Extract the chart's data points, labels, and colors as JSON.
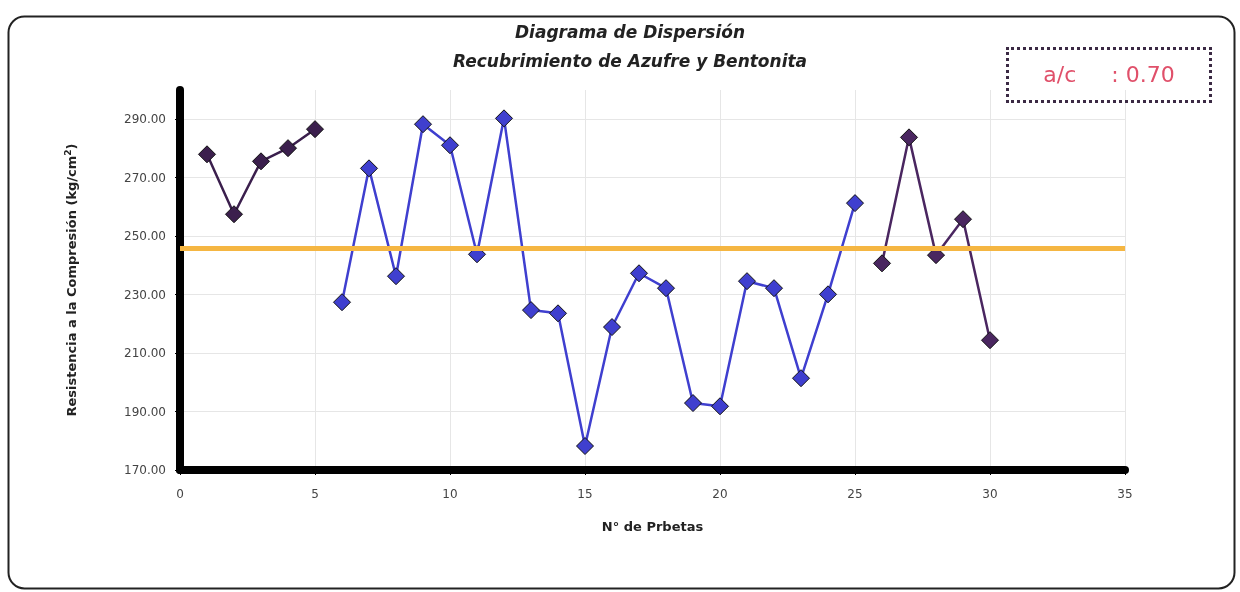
{
  "chart_data": {
    "type": "line",
    "title": "Diagrama de Dispersión",
    "subtitle": "Recubrimiento de Azufre y Bentonita",
    "xlabel": "N° de Prbetas",
    "ylabel": "Resistencia a la Compresión (kg/cm$^{2}$)",
    "annotations": [
      "a/c     : 0.70"
    ],
    "series": [
      {
        "color": "#3b1f4d",
        "x": [
          1,
          2,
          3,
          4,
          5
        ],
        "values": [
          278,
          257.5,
          275.6,
          280.1,
          286.6
        ]
      },
      {
        "color": "#3f3fcf",
        "x": [
          6,
          7,
          8,
          9,
          10,
          11,
          12,
          13,
          14,
          15,
          16,
          17,
          18,
          19,
          20,
          21,
          22,
          23,
          24,
          25
        ],
        "values": [
          227.4,
          273.2,
          236.3,
          288.3,
          281.1,
          243.8,
          290.3,
          224.7,
          223.6,
          178.2,
          218.9,
          237.3,
          232.2,
          192.9,
          191.8,
          234.6,
          232.2,
          201.4,
          230.1,
          261.3
        ]
      },
      {
        "color": "#4a2660",
        "x": [
          26,
          27,
          28,
          29,
          30
        ],
        "values": [
          240.7,
          283.8,
          243.5,
          255.8,
          214.4
        ]
      }
    ],
    "ref_lines": [
      {
        "axis": "y",
        "value": 246,
        "color": "#f5b642"
      }
    ],
    "xlim": [
      0,
      35
    ],
    "xticks": [
      0,
      5,
      10,
      15,
      20,
      25,
      30,
      35
    ],
    "ylim": [
      170,
      300
    ],
    "yticks": [
      {
        "value": 170,
        "label": "170.00"
      },
      {
        "value": 190,
        "label": "190.00"
      },
      {
        "value": 210,
        "label": "210.00"
      },
      {
        "value": 230,
        "label": "230.00"
      },
      {
        "value": 250,
        "label": "250.00"
      },
      {
        "value": 270,
        "label": "270.00"
      },
      {
        "value": 290,
        "label": "290.00"
      }
    ],
    "grid": true,
    "marker": "diamond",
    "line_style": "solid"
  }
}
